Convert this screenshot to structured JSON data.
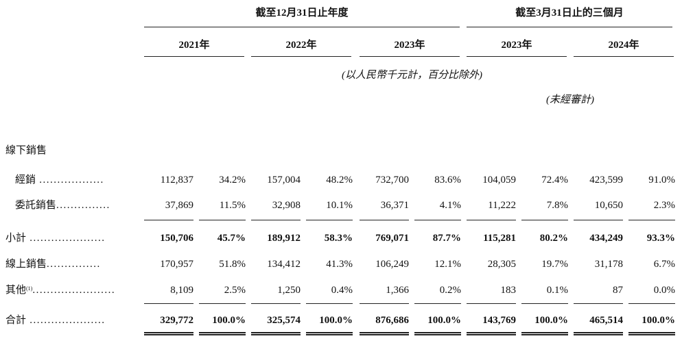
{
  "header": {
    "fy_group": "截至12月31日止年度",
    "q_group": "截至3月31日止的三個月",
    "years": [
      "2021年",
      "2022年",
      "2023年",
      "2023年",
      "2024年"
    ],
    "unit_note": "(以人民幣千元計，百分比除外)",
    "unaudited_note": "(未經審計)"
  },
  "rows": [
    {
      "label": "線下銷售",
      "dots": "",
      "values": []
    },
    {
      "label": "經銷",
      "dots": " ..................",
      "values": [
        "112,837",
        "34.2%",
        "157,004",
        "48.2%",
        "732,700",
        "83.6%",
        "104,059",
        "72.4%",
        "423,599",
        "91.0%"
      ]
    },
    {
      "label": "委託銷售",
      "dots": "...............",
      "values": [
        "37,869",
        "11.5%",
        "32,908",
        "10.1%",
        "36,371",
        "4.1%",
        "11,222",
        "7.8%",
        "10,650",
        "2.3%"
      ]
    },
    {
      "label": "小計",
      "dots": " .....................",
      "values": [
        "150,706",
        "45.7%",
        "189,912",
        "58.3%",
        "769,071",
        "87.7%",
        "115,281",
        "80.2%",
        "434,249",
        "93.3%"
      ]
    },
    {
      "label": "線上銷售",
      "dots": "...............",
      "values": [
        "170,957",
        "51.8%",
        "134,412",
        "41.3%",
        "106,249",
        "12.1%",
        "28,305",
        "19.7%",
        "31,178",
        "6.7%"
      ]
    },
    {
      "label": "其他",
      "sup": "(1)",
      "dots": ".......................",
      "values": [
        "8,109",
        "2.5%",
        "1,250",
        "0.4%",
        "1,366",
        "0.2%",
        "183",
        "0.1%",
        "87",
        "0.0%"
      ]
    },
    {
      "label": "合計",
      "dots": " .....................",
      "values": [
        "329,772",
        "100.0%",
        "325,574",
        "100.0%",
        "876,686",
        "100.0%",
        "143,769",
        "100.0%",
        "465,514",
        "100.0%"
      ]
    }
  ]
}
